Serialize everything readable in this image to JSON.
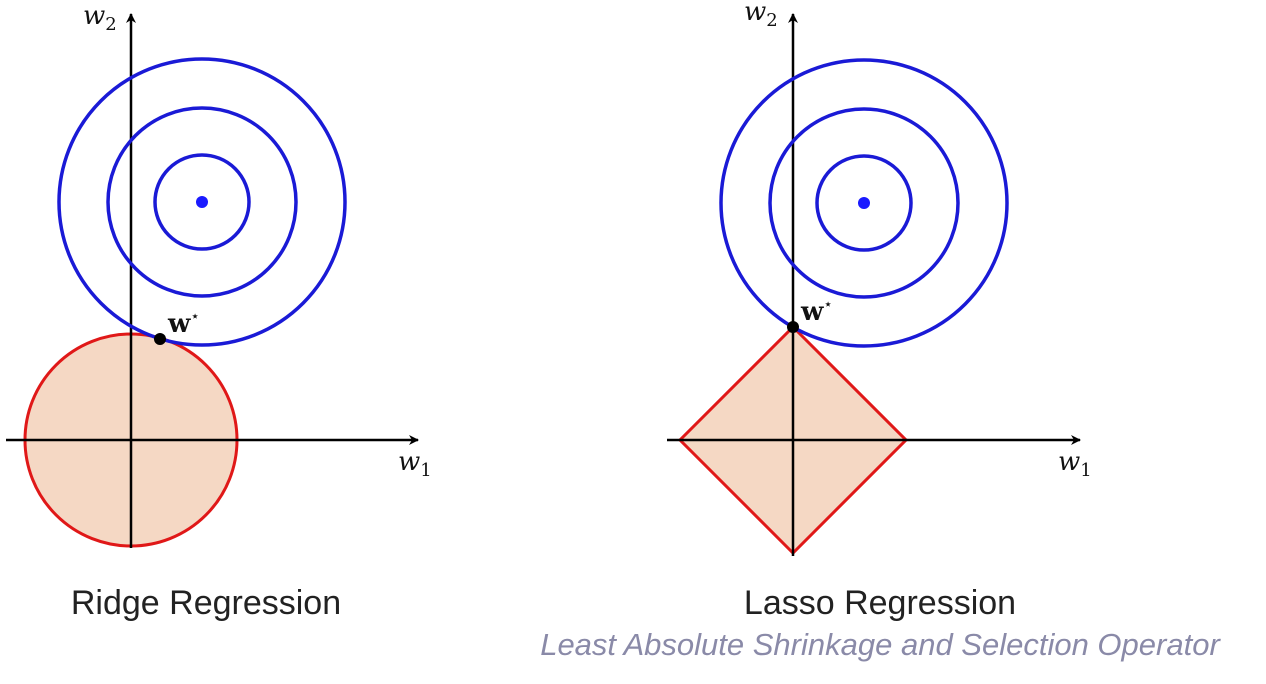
{
  "panels": [
    {
      "title": "Ridge Regression",
      "constraint": "circle",
      "x_axis_label": "w",
      "x_axis_subscript": "1",
      "y_axis_label": "w",
      "y_axis_subscript": "2",
      "solution_label": "w",
      "solution_superscript": "⋆"
    },
    {
      "title": "Lasso Regression",
      "subtitle": "Least Absolute Shrinkage and Selection Operator",
      "constraint": "diamond",
      "x_axis_label": "w",
      "x_axis_subscript": "1",
      "y_axis_label": "w",
      "y_axis_subscript": "2",
      "solution_label": "w",
      "solution_superscript": "⋆"
    }
  ],
  "colors": {
    "contour": "#1a1ad6",
    "optimum": "#1a1aff",
    "constraint_stroke": "#e01818",
    "constraint_fill": "#f5d8c4",
    "axis": "#000000",
    "solution_point": "#000000",
    "subtitle": "#8a8aa8"
  }
}
